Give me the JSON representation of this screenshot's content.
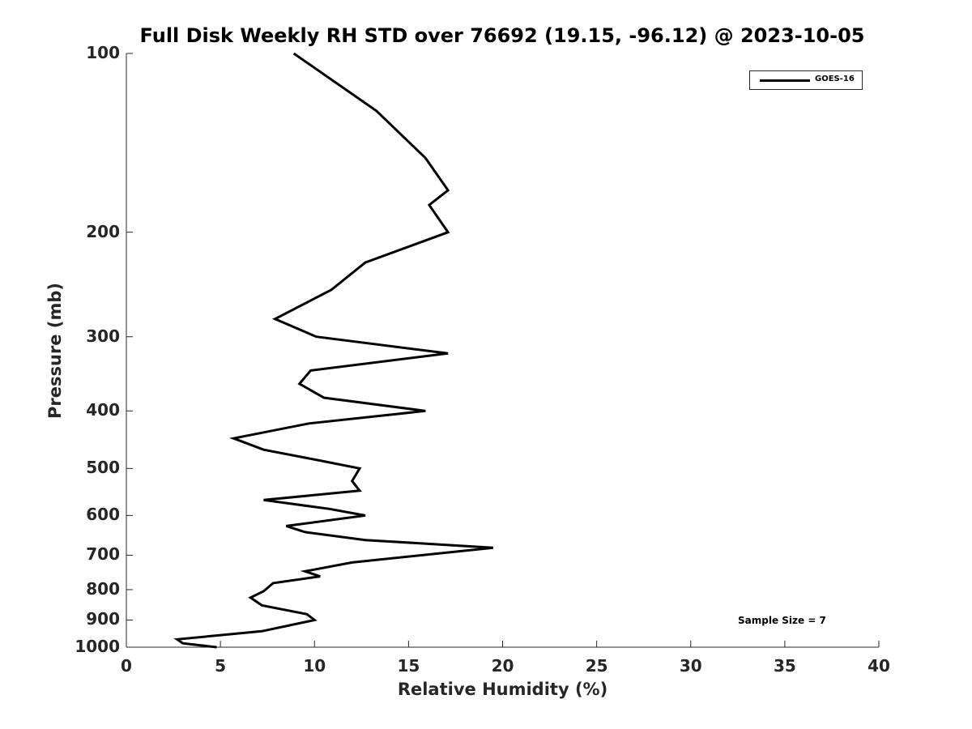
{
  "chart_data": {
    "type": "line",
    "title": "Full Disk Weekly RH STD over 76692 (19.15, -96.12) @ 2023-10-05",
    "xlabel": "Relative Humidity (%)",
    "ylabel": "Pressure (mb)",
    "xlim": [
      0,
      40
    ],
    "ylim": [
      100,
      1000
    ],
    "y_scale": "log",
    "y_reversed": true,
    "x_ticks": [
      0,
      5,
      10,
      15,
      20,
      25,
      30,
      35,
      40
    ],
    "y_ticks": [
      100,
      200,
      300,
      400,
      500,
      600,
      700,
      800,
      900,
      1000
    ],
    "grid": false,
    "legend_position": "top-right",
    "series": [
      {
        "name": "GOES-16",
        "color": "#000000",
        "points": [
          [
            8.9,
            100
          ],
          [
            13.3,
            125
          ],
          [
            15.9,
            150
          ],
          [
            17.1,
            170
          ],
          [
            16.1,
            180
          ],
          [
            17.1,
            200
          ],
          [
            12.7,
            225
          ],
          [
            10.9,
            250
          ],
          [
            7.9,
            280
          ],
          [
            10.1,
            300
          ],
          [
            17.1,
            320
          ],
          [
            9.8,
            342
          ],
          [
            9.2,
            360
          ],
          [
            10.5,
            380
          ],
          [
            15.9,
            400
          ],
          [
            9.7,
            420
          ],
          [
            5.7,
            445
          ],
          [
            7.3,
            465
          ],
          [
            10.3,
            485
          ],
          [
            12.4,
            500
          ],
          [
            12.0,
            525
          ],
          [
            12.4,
            545
          ],
          [
            7.3,
            565
          ],
          [
            10.8,
            585
          ],
          [
            12.7,
            600
          ],
          [
            8.5,
            625
          ],
          [
            9.5,
            640
          ],
          [
            12.7,
            660
          ],
          [
            19.5,
            680
          ],
          [
            12.0,
            720
          ],
          [
            9.5,
            745
          ],
          [
            10.3,
            760
          ],
          [
            7.8,
            780
          ],
          [
            7.3,
            805
          ],
          [
            6.6,
            825
          ],
          [
            7.2,
            850
          ],
          [
            9.6,
            880
          ],
          [
            10.0,
            900
          ],
          [
            7.2,
            940
          ],
          [
            2.7,
            970
          ],
          [
            3.0,
            985
          ],
          [
            4.8,
            1000
          ]
        ]
      }
    ],
    "annotation": "Sample Size = 7"
  }
}
